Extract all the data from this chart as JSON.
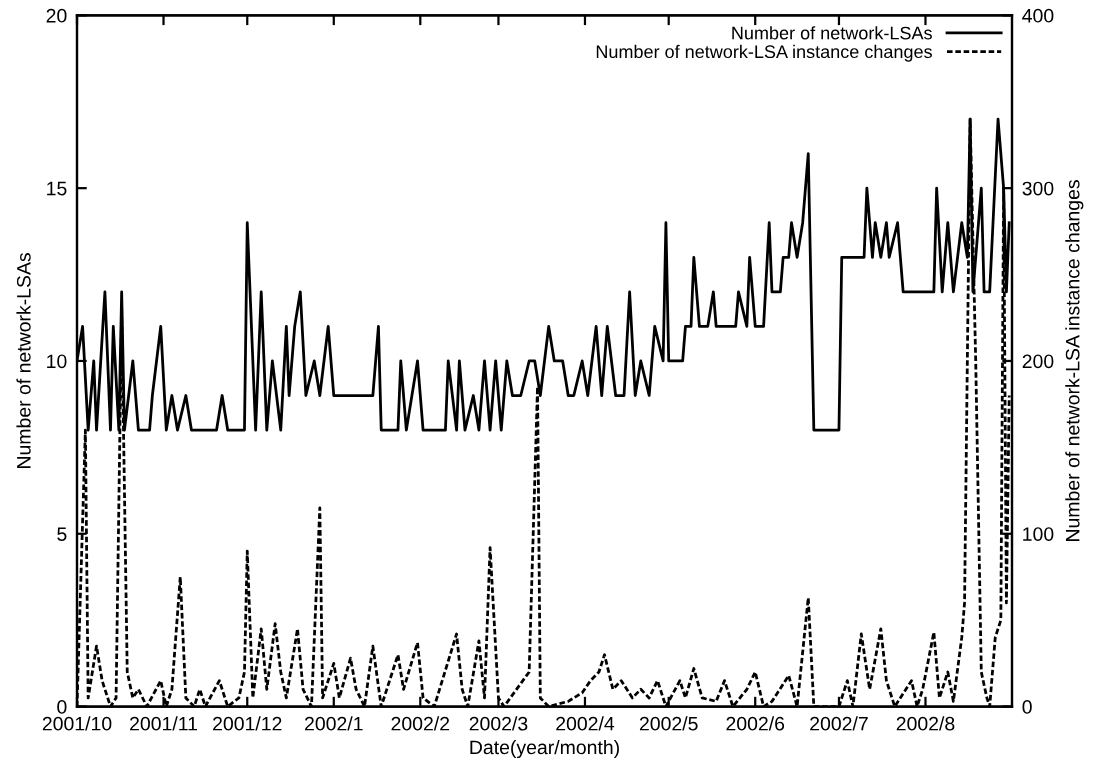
{
  "chart_data": {
    "type": "line",
    "xlabel": "Date(year/month)",
    "ylabel": "Number of network-LSAs",
    "y2label": "Number of network-LSA instance changes",
    "xlim": [
      "2001-10-01",
      "2002-09-01"
    ],
    "xticks": [
      {
        "value": "2001-10-01",
        "label": "2001/10"
      },
      {
        "value": "2001-11-01",
        "label": "2001/11"
      },
      {
        "value": "2001-12-01",
        "label": "2001/12"
      },
      {
        "value": "2002-01-01",
        "label": "2002/1"
      },
      {
        "value": "2002-02-01",
        "label": "2002/2"
      },
      {
        "value": "2002-03-01",
        "label": "2002/3"
      },
      {
        "value": "2002-04-01",
        "label": "2002/4"
      },
      {
        "value": "2002-05-01",
        "label": "2002/5"
      },
      {
        "value": "2002-06-01",
        "label": "2002/6"
      },
      {
        "value": "2002-07-01",
        "label": "2002/7"
      },
      {
        "value": "2002-08-01",
        "label": "2002/8"
      }
    ],
    "ylim": [
      0,
      20
    ],
    "yticks": [
      0,
      5,
      10,
      15,
      20
    ],
    "y2lim": [
      0,
      400
    ],
    "y2ticks": [
      0,
      100,
      200,
      300,
      400
    ],
    "grid": false,
    "legend": "top right",
    "marker": "none",
    "series": [
      {
        "name": "Number of network-LSAs",
        "color": "#000000",
        "line_style": "solid",
        "x": [
          "2001-10-01",
          "2001-10-03",
          "2001-10-05",
          "2001-10-07",
          "2001-10-08",
          "2001-10-11",
          "2001-10-13",
          "2001-10-14",
          "2001-10-16",
          "2001-10-17",
          "2001-10-18",
          "2001-10-21",
          "2001-10-23",
          "2001-10-27",
          "2001-10-28",
          "2001-10-31",
          "2001-11-02",
          "2001-11-04",
          "2001-11-06",
          "2001-11-09",
          "2001-11-11",
          "2001-11-20",
          "2001-11-22",
          "2001-11-24",
          "2001-11-30",
          "2001-12-01",
          "2001-12-04",
          "2001-12-06",
          "2001-12-08",
          "2001-12-10",
          "2001-12-13",
          "2001-12-15",
          "2001-12-16",
          "2001-12-18",
          "2001-12-20",
          "2001-12-22",
          "2001-12-25",
          "2001-12-27",
          "2001-12-30",
          "2002-01-01",
          "2002-01-15",
          "2002-01-17",
          "2002-01-18",
          "2002-01-24",
          "2002-01-25",
          "2002-01-27",
          "2002-01-29",
          "2002-01-31",
          "2002-02-02",
          "2002-02-10",
          "2002-02-11",
          "2002-02-14",
          "2002-02-15",
          "2002-02-17",
          "2002-02-20",
          "2002-02-22",
          "2002-02-24",
          "2002-02-26",
          "2002-02-28",
          "2002-03-02",
          "2002-03-04",
          "2002-03-06",
          "2002-03-09",
          "2002-03-12",
          "2002-03-14",
          "2002-03-16",
          "2002-03-19",
          "2002-03-21",
          "2002-03-24",
          "2002-03-26",
          "2002-03-28",
          "2002-03-31",
          "2002-04-02",
          "2002-04-05",
          "2002-04-07",
          "2002-04-09",
          "2002-04-12",
          "2002-04-15",
          "2002-04-17",
          "2002-04-19",
          "2002-04-21",
          "2002-04-24",
          "2002-04-26",
          "2002-04-29",
          "2002-04-30",
          "2002-05-01",
          "2002-05-06",
          "2002-05-07",
          "2002-05-09",
          "2002-05-10",
          "2002-05-12",
          "2002-05-15",
          "2002-05-17",
          "2002-05-18",
          "2002-05-25",
          "2002-05-26",
          "2002-05-29",
          "2002-05-30",
          "2002-06-01",
          "2002-06-04",
          "2002-06-06",
          "2002-06-07",
          "2002-06-10",
          "2002-06-11",
          "2002-06-13",
          "2002-06-14",
          "2002-06-16",
          "2002-06-18",
          "2002-06-20",
          "2002-06-22",
          "2002-07-01",
          "2002-07-02",
          "2002-07-10",
          "2002-07-11",
          "2002-07-13",
          "2002-07-14",
          "2002-07-16",
          "2002-07-18",
          "2002-07-19",
          "2002-07-22",
          "2002-07-24",
          "2002-07-28",
          "2002-08-04",
          "2002-08-05",
          "2002-08-07",
          "2002-08-09",
          "2002-08-11",
          "2002-08-14",
          "2002-08-16",
          "2002-08-17",
          "2002-08-18",
          "2002-08-20",
          "2002-08-21",
          "2002-08-22",
          "2002-08-24",
          "2002-08-27",
          "2002-08-29",
          "2002-08-30",
          "2002-08-31"
        ],
        "values": [
          10,
          11,
          8,
          10,
          8,
          12,
          8,
          11,
          8,
          12,
          8,
          10,
          8,
          8,
          9,
          11,
          8,
          9,
          8,
          9,
          8,
          8,
          9,
          8,
          8,
          14,
          8,
          12,
          8,
          10,
          8,
          11,
          9,
          11,
          12,
          9,
          10,
          9,
          11,
          9,
          9,
          11,
          8,
          8,
          10,
          8,
          9,
          10,
          8,
          8,
          10,
          8,
          10,
          8,
          9,
          8,
          10,
          8,
          10,
          8,
          10,
          9,
          9,
          10,
          10,
          9,
          11,
          10,
          10,
          9,
          9,
          10,
          9,
          11,
          9,
          11,
          9,
          9,
          12,
          9,
          10,
          9,
          11,
          10,
          14,
          10,
          10,
          11,
          11,
          13,
          11,
          11,
          12,
          11,
          11,
          12,
          11,
          13,
          11,
          11,
          14,
          12,
          12,
          13,
          13,
          14,
          13,
          14,
          16,
          8,
          8,
          13,
          13,
          15,
          13,
          14,
          13,
          14,
          13,
          14,
          12,
          12,
          12,
          15,
          12,
          14,
          12,
          14,
          13,
          17,
          12,
          14,
          15,
          12,
          12,
          17,
          15,
          12,
          14
        ]
      },
      {
        "name": "Number of network-LSA instance changes",
        "color": "#000000",
        "line_style": "dashed",
        "axis": "y2",
        "x": [
          "2001-10-01",
          "2001-10-04",
          "2001-10-05",
          "2001-10-08",
          "2001-10-10",
          "2001-10-13",
          "2001-10-15",
          "2001-10-17",
          "2001-10-19",
          "2001-10-21",
          "2001-10-23",
          "2001-10-26",
          "2001-10-31",
          "2001-11-02",
          "2001-11-04",
          "2001-11-07",
          "2001-11-09",
          "2001-11-12",
          "2001-11-14",
          "2001-11-16",
          "2001-11-21",
          "2001-11-24",
          "2001-11-28",
          "2001-11-30",
          "2001-12-01",
          "2001-12-03",
          "2001-12-06",
          "2001-12-08",
          "2001-12-11",
          "2001-12-13",
          "2001-12-15",
          "2001-12-19",
          "2001-12-21",
          "2001-12-24",
          "2001-12-27",
          "2001-12-28",
          "2002-01-01",
          "2002-01-03",
          "2002-01-07",
          "2002-01-09",
          "2002-01-12",
          "2002-01-15",
          "2002-01-18",
          "2002-01-24",
          "2002-01-26",
          "2002-01-31",
          "2002-02-02",
          "2002-02-06",
          "2002-02-14",
          "2002-02-16",
          "2002-02-18",
          "2002-02-22",
          "2002-02-24",
          "2002-02-26",
          "2002-03-01",
          "2002-03-03",
          "2002-03-12",
          "2002-03-15",
          "2002-03-16",
          "2002-03-19",
          "2002-03-26",
          "2002-03-31",
          "2002-04-03",
          "2002-04-06",
          "2002-04-08",
          "2002-04-11",
          "2002-04-14",
          "2002-04-18",
          "2002-04-21",
          "2002-04-24",
          "2002-04-27",
          "2002-04-30",
          "2002-05-05",
          "2002-05-07",
          "2002-05-10",
          "2002-05-13",
          "2002-05-18",
          "2002-05-21",
          "2002-05-24",
          "2002-05-29",
          "2002-06-01",
          "2002-06-04",
          "2002-06-07",
          "2002-06-13",
          "2002-06-16",
          "2002-06-20",
          "2002-06-22",
          "2002-07-01",
          "2002-07-04",
          "2002-07-06",
          "2002-07-09",
          "2002-07-12",
          "2002-07-16",
          "2002-07-18",
          "2002-07-21",
          "2002-07-27",
          "2002-07-29",
          "2002-07-31",
          "2002-08-04",
          "2002-08-06",
          "2002-08-09",
          "2002-08-11",
          "2002-08-14",
          "2002-08-15",
          "2002-08-17",
          "2002-08-19",
          "2002-08-21",
          "2002-08-23",
          "2002-08-24",
          "2002-08-26",
          "2002-08-28",
          "2002-08-29",
          "2002-08-30",
          "2002-08-31"
        ],
        "values": [
          0,
          160,
          5,
          35,
          15,
          0,
          5,
          230,
          20,
          5,
          10,
          0,
          15,
          0,
          10,
          75,
          5,
          0,
          10,
          0,
          15,
          0,
          5,
          20,
          90,
          5,
          45,
          10,
          48,
          20,
          5,
          45,
          10,
          0,
          115,
          5,
          25,
          5,
          28,
          10,
          0,
          35,
          0,
          30,
          10,
          37,
          5,
          0,
          42,
          10,
          0,
          38,
          5,
          92,
          5,
          0,
          20,
          185,
          5,
          0,
          3,
          8,
          15,
          20,
          30,
          10,
          15,
          5,
          10,
          5,
          15,
          0,
          15,
          5,
          22,
          5,
          3,
          15,
          0,
          10,
          20,
          0,
          3,
          18,
          0,
          63,
          0,
          0,
          15,
          0,
          42,
          10,
          45,
          15,
          0,
          15,
          0,
          10,
          43,
          5,
          20,
          3,
          40,
          60,
          340,
          200,
          20,
          5,
          0,
          40,
          50,
          300,
          60,
          180
        ]
      }
    ]
  }
}
